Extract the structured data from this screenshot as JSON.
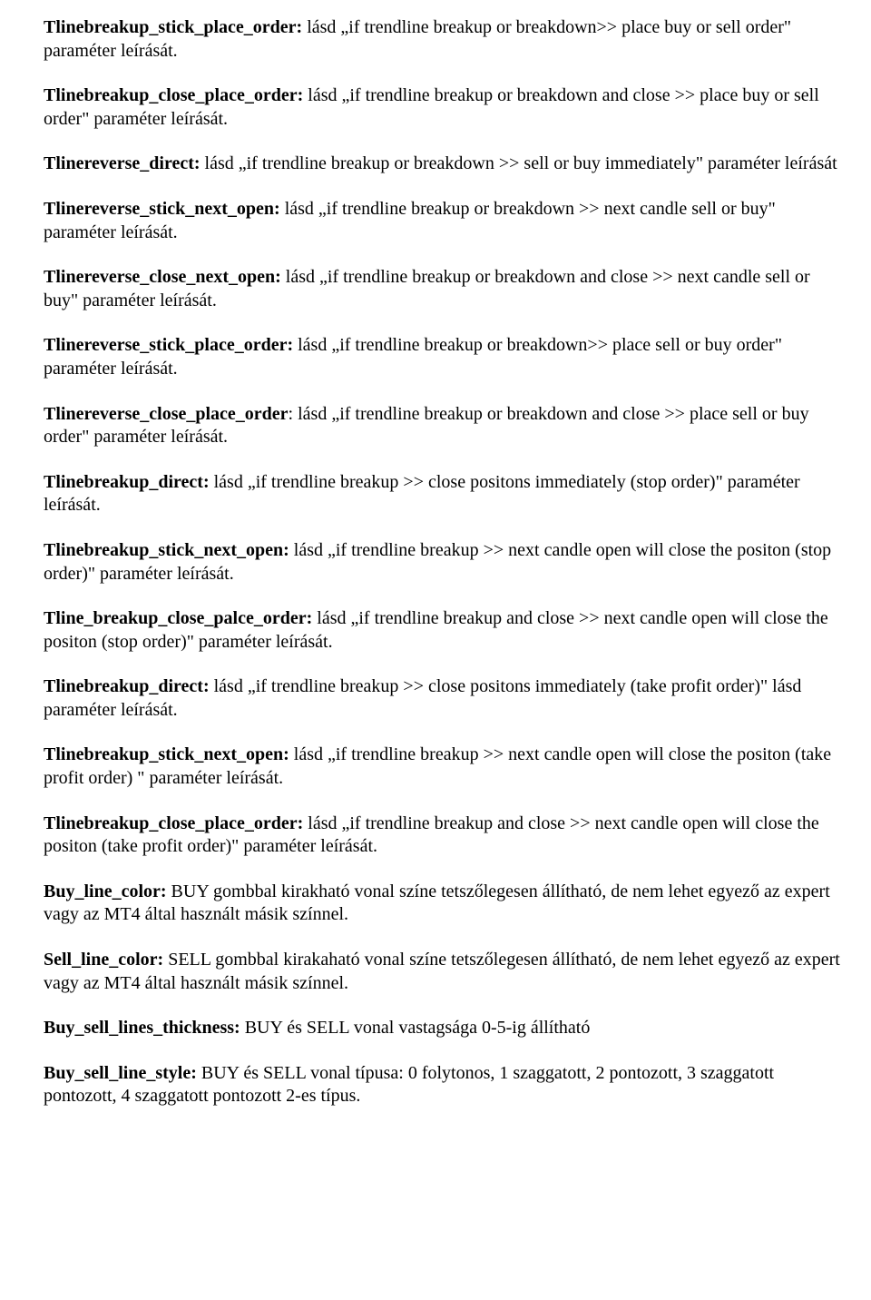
{
  "paras": [
    {
      "bold": "Tlinebreakup_stick_place_order:",
      "rest": " lásd „if trendline breakup or breakdown>> place buy or sell  order\" paraméter leírását."
    },
    {
      "bold": "Tlinebreakup_close_place_order:",
      "rest": " lásd „if trendline breakup or breakdown and close >> place buy or sell order\" paraméter leírását."
    },
    {
      "bold": "Tlinereverse_direct:",
      "rest": "  lásd „if trendline breakup or breakdown >> sell or buy immediately\" paraméter leírását"
    },
    {
      "bold": "Tlinereverse_stick_next_open:",
      "rest": " lásd „if trendline breakup or breakdown >>  next candle sell or buy\" paraméter leírását."
    },
    {
      "bold": "Tlinereverse_close_next_open:",
      "rest": " lásd „if trendline breakup or breakdown and close >> next candle sell or buy\" paraméter leírását."
    },
    {
      "bold": "Tlinereverse_stick_place_order:",
      "rest": " lásd „if trendline breakup or breakdown>> place sell or buy order\" paraméter leírását."
    },
    {
      "bold": "Tlinereverse_close_place_order",
      "rest": ": lásd „if trendline breakup or breakdown and close >> place sell or buy order\" paraméter leírását."
    },
    {
      "bold": "Tlinebreakup_direct:",
      "rest": " lásd „if trendline breakup >> close positons immediately (stop order)\" paraméter leírását."
    },
    {
      "bold": "Tlinebreakup_stick_next_open:",
      "rest": " lásd „if trendline breakup >> next candle open will close the positon  (stop order)\" paraméter leírását."
    },
    {
      "bold": "Tline_breakup_close_palce_order:",
      "rest": " lásd „if trendline breakup and close >> next candle open will close the positon (stop order)\"  paraméter leírását."
    },
    {
      "bold": "Tlinebreakup_direct:",
      "rest": " lásd „if trendline breakup >> close positons immediately (take profit order)\" lásd paraméter leírását."
    },
    {
      "bold": "Tlinebreakup_stick_next_open:",
      "rest": " lásd „if trendline breakup >> next candle open will close the positon  (take profit order) \" paraméter leírását."
    },
    {
      "bold": "Tlinebreakup_close_place_order:",
      "rest": " lásd „if trendline breakup and close >> next candle open will close the positon (take profit order)\" paraméter leírását."
    },
    {
      "bold": "Buy_line_color:",
      "rest": " BUY gombbal kirakható vonal színe tetszőlegesen állítható, de nem lehet egyező az expert vagy az MT4 által használt másik színnel."
    },
    {
      "bold": "Sell_line_color:",
      "rest": " SELL gombbal kirakaható vonal színe tetszőlegesen állítható, de nem lehet egyező az expert vagy az MT4 által használt másik színnel."
    },
    {
      "bold": "Buy_sell_lines_thickness:",
      "rest": " BUY és SELL vonal vastagsága 0-5-ig állítható"
    },
    {
      "bold": "Buy_sell_line_style:",
      "rest": " BUY és SELL vonal típusa: 0 folytonos, 1 szaggatott, 2 pontozott, 3 szaggatott pontozott, 4 szaggatott pontozott 2-es típus."
    }
  ]
}
